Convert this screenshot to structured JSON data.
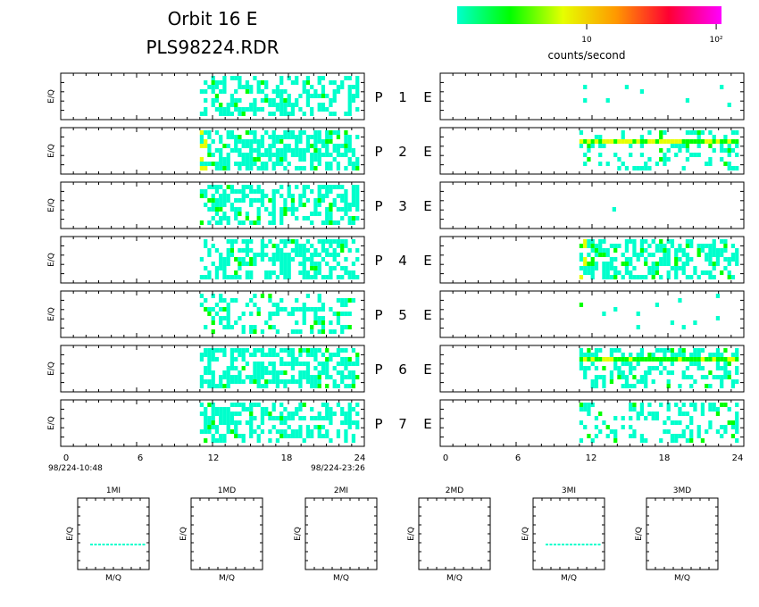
{
  "header": {
    "title_line1": "Orbit 16 E",
    "title_line2": "PLS98224.RDR"
  },
  "colorbar": {
    "label": "counts/second",
    "tick_labels": [
      "10",
      "10²"
    ],
    "colors": [
      "#00ffcc",
      "#00ff00",
      "#e6ff00",
      "#ff9900",
      "#ff0033",
      "#ff00ff"
    ]
  },
  "panels": {
    "ylabel": "E/Q",
    "row_labels": [
      {
        "p": "P",
        "n": "1",
        "e": "E"
      },
      {
        "p": "P",
        "n": "2",
        "e": "E"
      },
      {
        "p": "P",
        "n": "3",
        "e": "E"
      },
      {
        "p": "P",
        "n": "4",
        "e": "E"
      },
      {
        "p": "P",
        "n": "5",
        "e": "E"
      },
      {
        "p": "P",
        "n": "6",
        "e": "E"
      },
      {
        "p": "P",
        "n": "7",
        "e": "E"
      }
    ],
    "x_ticks": [
      "0",
      "6",
      "12",
      "18",
      "24"
    ],
    "start_time": "98/224-10:48",
    "end_time": "98/224-23:26"
  },
  "bottom_panels": {
    "xlabel": "M/Q",
    "ylabel": "E/Q",
    "titles": [
      "1MI",
      "1MD",
      "2MI",
      "2MD",
      "3MI",
      "3MD"
    ]
  },
  "chart_data": {
    "type": "heatmap",
    "title": "Orbit 16 E",
    "subtitle": "PLS98224.RDR",
    "xlabel": "",
    "ylabel": "E/Q",
    "xlim": [
      0,
      24
    ],
    "x_ticks": [
      0,
      6,
      12,
      18,
      24
    ],
    "color_scale": {
      "type": "log",
      "label": "counts/second",
      "range": [
        1,
        100
      ]
    },
    "panels": [
      {
        "side": "left",
        "label": "P 1 E",
        "x_range": [
          11,
          23.5
        ],
        "fill": 0.5,
        "hot_cols": []
      },
      {
        "side": "right",
        "label": "P 1 E",
        "x_range": [
          11,
          23.5
        ],
        "fill": 0.02,
        "hot_cols": []
      },
      {
        "side": "left",
        "label": "P 2 E",
        "x_range": [
          11,
          23.5
        ],
        "fill": 0.6,
        "hot_cols": [
          11
        ]
      },
      {
        "side": "right",
        "label": "P 2 E",
        "x_range": [
          11,
          23.5
        ],
        "fill": 0.3,
        "band_row": 0.25,
        "band_level": 0.7
      },
      {
        "side": "left",
        "label": "P 3 E",
        "x_range": [
          11,
          23.5
        ],
        "fill": 0.5,
        "hot_cols": []
      },
      {
        "side": "right",
        "label": "P 3 E",
        "x_range": [
          13,
          14
        ],
        "fill": 0.01,
        "hot_cols": []
      },
      {
        "side": "left",
        "label": "P 4 E",
        "x_range": [
          11,
          23.5
        ],
        "fill": 0.55,
        "hot_cols": []
      },
      {
        "side": "right",
        "label": "P 4 E",
        "x_range": [
          11,
          23.5
        ],
        "fill": 0.55,
        "hot_cols": [
          11
        ]
      },
      {
        "side": "left",
        "label": "P 5 E",
        "x_range": [
          11,
          23.5
        ],
        "fill": 0.3,
        "hot_cols": []
      },
      {
        "side": "right",
        "label": "P 5 E",
        "x_range": [
          11,
          22
        ],
        "fill": 0.03,
        "hot_cols": []
      },
      {
        "side": "left",
        "label": "P 6 E",
        "x_range": [
          11,
          23.5
        ],
        "fill": 0.6,
        "hot_cols": []
      },
      {
        "side": "right",
        "label": "P 6 E",
        "x_range": [
          11,
          23.5
        ],
        "fill": 0.45,
        "band_row": 0.2,
        "band_level": 0.6
      },
      {
        "side": "left",
        "label": "P 7 E",
        "x_range": [
          11,
          23.5
        ],
        "fill": 0.45,
        "hot_cols": []
      },
      {
        "side": "right",
        "label": "P 7 E",
        "x_range": [
          11,
          23.5
        ],
        "fill": 0.3,
        "hot_cols": []
      }
    ],
    "mass_panels": [
      {
        "title": "1MI",
        "has_line": true,
        "line_y": 0.5
      },
      {
        "title": "1MD",
        "has_line": false
      },
      {
        "title": "2MI",
        "has_line": false
      },
      {
        "title": "2MD",
        "has_line": false
      },
      {
        "title": "3MI",
        "has_line": true,
        "line_y": 0.5
      },
      {
        "title": "3MD",
        "has_line": false
      }
    ]
  }
}
